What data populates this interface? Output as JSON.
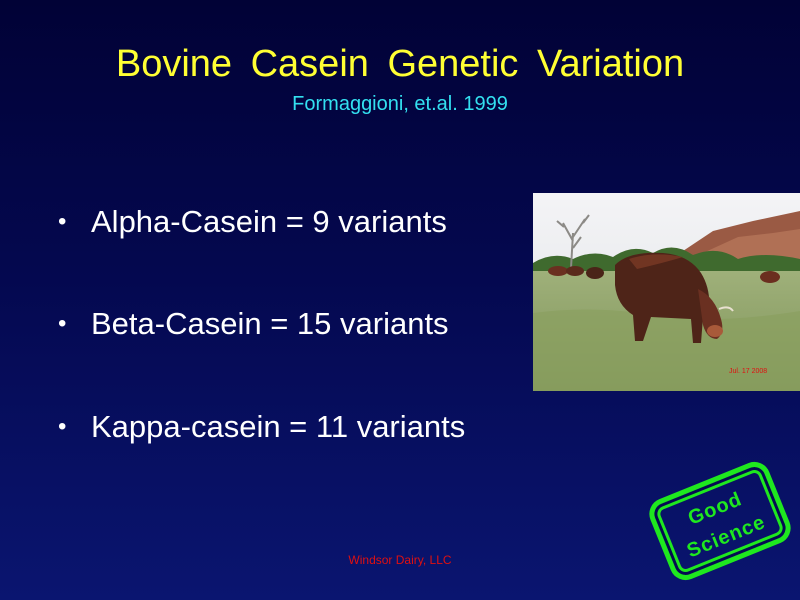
{
  "slide": {
    "title": "Bovine  Casein  Genetic  Variation",
    "subtitle": "Formaggioni, et.al. 1999",
    "bullets": [
      "Alpha-Casein = 9 variants",
      "Beta-Casein = 15 variants",
      "Kappa-casein = 11 variants"
    ],
    "footer": "Windsor Dairy, LLC",
    "stamp": {
      "line1": "Good",
      "line2": "Science"
    },
    "photo": {
      "caption": "Jul. 17 2008"
    }
  },
  "colors": {
    "background": "#04084f",
    "title": "#ffff33",
    "subtitle": "#33e0f0",
    "bullet_text": "#ffffff",
    "footer": "#e01010",
    "stamp": "#1fe81f"
  }
}
